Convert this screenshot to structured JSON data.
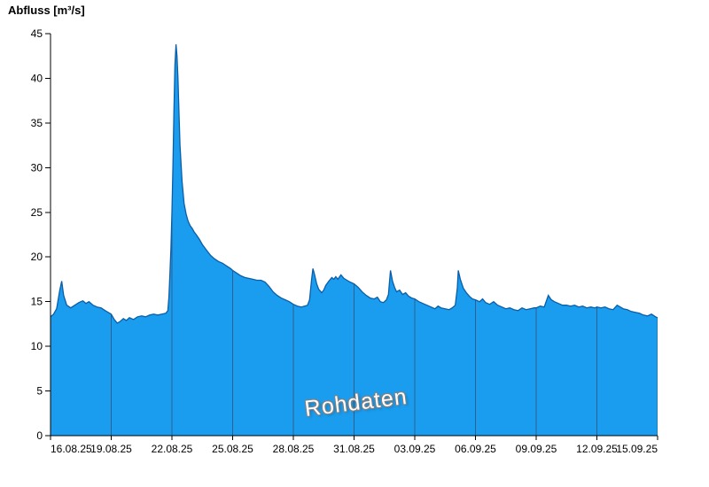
{
  "chart_data": {
    "type": "area",
    "title": "Abfluss [m³/s]",
    "watermark": "Rohdaten",
    "ylabel": "Abfluss [m³/s]",
    "ylim": [
      0,
      45
    ],
    "y_ticks": [
      0,
      5,
      10,
      15,
      20,
      25,
      30,
      35,
      40,
      45
    ],
    "x_tick_labels": [
      "16.08.25",
      "19.08.25",
      "22.08.25",
      "25.08.25",
      "28.08.25",
      "31.08.25",
      "03.09.25",
      "06.09.25",
      "09.09.25",
      "12.09.25",
      "15.09.25"
    ],
    "x_tick_days": [
      0,
      3,
      6,
      9,
      12,
      15,
      18,
      21,
      24,
      27,
      30
    ],
    "x_range_days": [
      0,
      30
    ],
    "grid": "vertical-gridlines-visible-only-inside-area",
    "legend": "none",
    "colors": {
      "area_fill": "#1B9DEF",
      "area_stroke": "#0A5EA8",
      "grid_line": "#2F5F8F",
      "axis": "#000000",
      "watermark_fill": "#FFFFFF",
      "watermark_outline": "#808080"
    },
    "series": [
      {
        "name": "Abfluss Rohdaten",
        "unit": "m³/s",
        "points": [
          [
            0,
            13.3
          ],
          [
            0.15,
            13.6
          ],
          [
            0.3,
            14.2
          ],
          [
            0.45,
            16.2
          ],
          [
            0.55,
            17.3
          ],
          [
            0.65,
            15.7
          ],
          [
            0.8,
            14.6
          ],
          [
            1,
            14.3
          ],
          [
            1.2,
            14.6
          ],
          [
            1.4,
            14.9
          ],
          [
            1.6,
            15.1
          ],
          [
            1.75,
            14.8
          ],
          [
            1.9,
            15
          ],
          [
            2.1,
            14.6
          ],
          [
            2.3,
            14.4
          ],
          [
            2.5,
            14.3
          ],
          [
            2.7,
            14
          ],
          [
            2.85,
            13.8
          ],
          [
            3,
            13.6
          ],
          [
            3.15,
            13
          ],
          [
            3.3,
            12.6
          ],
          [
            3.45,
            12.8
          ],
          [
            3.6,
            13.1
          ],
          [
            3.75,
            12.9
          ],
          [
            3.9,
            13.2
          ],
          [
            4.1,
            13
          ],
          [
            4.3,
            13.3
          ],
          [
            4.5,
            13.4
          ],
          [
            4.7,
            13.3
          ],
          [
            4.9,
            13.5
          ],
          [
            5.1,
            13.6
          ],
          [
            5.3,
            13.5
          ],
          [
            5.5,
            13.6
          ],
          [
            5.7,
            13.7
          ],
          [
            5.8,
            14
          ],
          [
            5.85,
            15.5
          ],
          [
            5.9,
            18
          ],
          [
            5.95,
            21
          ],
          [
            6,
            25
          ],
          [
            6.05,
            30
          ],
          [
            6.1,
            36.5
          ],
          [
            6.15,
            41.5
          ],
          [
            6.2,
            43.8
          ],
          [
            6.25,
            42.5
          ],
          [
            6.3,
            40
          ],
          [
            6.35,
            36
          ],
          [
            6.4,
            32.5
          ],
          [
            6.5,
            28.5
          ],
          [
            6.6,
            26
          ],
          [
            6.7,
            24.8
          ],
          [
            6.8,
            24
          ],
          [
            6.9,
            23.5
          ],
          [
            7,
            23.2
          ],
          [
            7.1,
            22.8
          ],
          [
            7.2,
            22.5
          ],
          [
            7.35,
            22
          ],
          [
            7.5,
            21.4
          ],
          [
            7.7,
            20.8
          ],
          [
            7.9,
            20.2
          ],
          [
            8.1,
            19.8
          ],
          [
            8.3,
            19.5
          ],
          [
            8.5,
            19.3
          ],
          [
            8.7,
            19
          ],
          [
            8.9,
            18.7
          ],
          [
            9,
            18.5
          ],
          [
            9.2,
            18.2
          ],
          [
            9.4,
            17.9
          ],
          [
            9.6,
            17.7
          ],
          [
            9.8,
            17.6
          ],
          [
            10,
            17.5
          ],
          [
            10.2,
            17.4
          ],
          [
            10.4,
            17.4
          ],
          [
            10.6,
            17.2
          ],
          [
            10.8,
            16.7
          ],
          [
            11,
            16.1
          ],
          [
            11.2,
            15.7
          ],
          [
            11.4,
            15.4
          ],
          [
            11.6,
            15.2
          ],
          [
            11.8,
            15
          ],
          [
            12,
            14.7
          ],
          [
            12.2,
            14.5
          ],
          [
            12.4,
            14.4
          ],
          [
            12.55,
            14.5
          ],
          [
            12.7,
            14.6
          ],
          [
            12.8,
            15.2
          ],
          [
            12.9,
            17.5
          ],
          [
            12.97,
            18.7
          ],
          [
            13.05,
            18
          ],
          [
            13.15,
            17
          ],
          [
            13.25,
            16.4
          ],
          [
            13.4,
            16
          ],
          [
            13.5,
            16.3
          ],
          [
            13.6,
            16.8
          ],
          [
            13.75,
            17.3
          ],
          [
            13.9,
            17.7
          ],
          [
            14,
            17.5
          ],
          [
            14.1,
            17.8
          ],
          [
            14.2,
            17.5
          ],
          [
            14.35,
            18
          ],
          [
            14.5,
            17.6
          ],
          [
            14.65,
            17.4
          ],
          [
            14.8,
            17.2
          ],
          [
            15,
            17
          ],
          [
            15.2,
            16.6
          ],
          [
            15.4,
            16.1
          ],
          [
            15.6,
            15.7
          ],
          [
            15.8,
            15.4
          ],
          [
            16,
            15.3
          ],
          [
            16.15,
            15.5
          ],
          [
            16.3,
            15
          ],
          [
            16.45,
            14.9
          ],
          [
            16.6,
            15.2
          ],
          [
            16.7,
            15.8
          ],
          [
            16.8,
            18.5
          ],
          [
            16.9,
            17.3
          ],
          [
            17,
            16.6
          ],
          [
            17.1,
            16.1
          ],
          [
            17.25,
            16.3
          ],
          [
            17.4,
            15.8
          ],
          [
            17.55,
            16
          ],
          [
            17.7,
            15.6
          ],
          [
            17.85,
            15.4
          ],
          [
            18,
            15.3
          ],
          [
            18.2,
            15
          ],
          [
            18.4,
            14.8
          ],
          [
            18.6,
            14.6
          ],
          [
            18.8,
            14.4
          ],
          [
            19,
            14.2
          ],
          [
            19.15,
            14.5
          ],
          [
            19.3,
            14.3
          ],
          [
            19.5,
            14.2
          ],
          [
            19.7,
            14.1
          ],
          [
            19.85,
            14.3
          ],
          [
            20,
            14.6
          ],
          [
            20.1,
            16.5
          ],
          [
            20.15,
            18.5
          ],
          [
            20.25,
            17.5
          ],
          [
            20.4,
            16.5
          ],
          [
            20.55,
            16
          ],
          [
            20.7,
            15.6
          ],
          [
            20.85,
            15.3
          ],
          [
            21,
            15.2
          ],
          [
            21.2,
            15
          ],
          [
            21.35,
            15.3
          ],
          [
            21.5,
            14.9
          ],
          [
            21.7,
            14.7
          ],
          [
            21.9,
            15
          ],
          [
            22.1,
            14.6
          ],
          [
            22.3,
            14.4
          ],
          [
            22.5,
            14.2
          ],
          [
            22.7,
            14.3
          ],
          [
            22.9,
            14.1
          ],
          [
            23.1,
            14
          ],
          [
            23.3,
            14.3
          ],
          [
            23.5,
            14.1
          ],
          [
            23.7,
            14.2
          ],
          [
            23.9,
            14.3
          ],
          [
            24,
            14.3
          ],
          [
            24.2,
            14.5
          ],
          [
            24.4,
            14.4
          ],
          [
            24.6,
            15.7
          ],
          [
            24.75,
            15.2
          ],
          [
            24.9,
            15
          ],
          [
            25.1,
            14.8
          ],
          [
            25.3,
            14.6
          ],
          [
            25.5,
            14.6
          ],
          [
            25.7,
            14.5
          ],
          [
            25.9,
            14.6
          ],
          [
            26.1,
            14.4
          ],
          [
            26.3,
            14.5
          ],
          [
            26.5,
            14.3
          ],
          [
            26.7,
            14.4
          ],
          [
            26.9,
            14.3
          ],
          [
            27,
            14.4
          ],
          [
            27.2,
            14.3
          ],
          [
            27.4,
            14.4
          ],
          [
            27.6,
            14.2
          ],
          [
            27.8,
            14.1
          ],
          [
            28,
            14.6
          ],
          [
            28.15,
            14.4
          ],
          [
            28.3,
            14.2
          ],
          [
            28.5,
            14.1
          ],
          [
            28.7,
            13.9
          ],
          [
            28.9,
            13.8
          ],
          [
            29.1,
            13.7
          ],
          [
            29.3,
            13.5
          ],
          [
            29.5,
            13.4
          ],
          [
            29.7,
            13.6
          ],
          [
            29.9,
            13.3
          ],
          [
            30,
            13.2
          ]
        ]
      }
    ]
  }
}
